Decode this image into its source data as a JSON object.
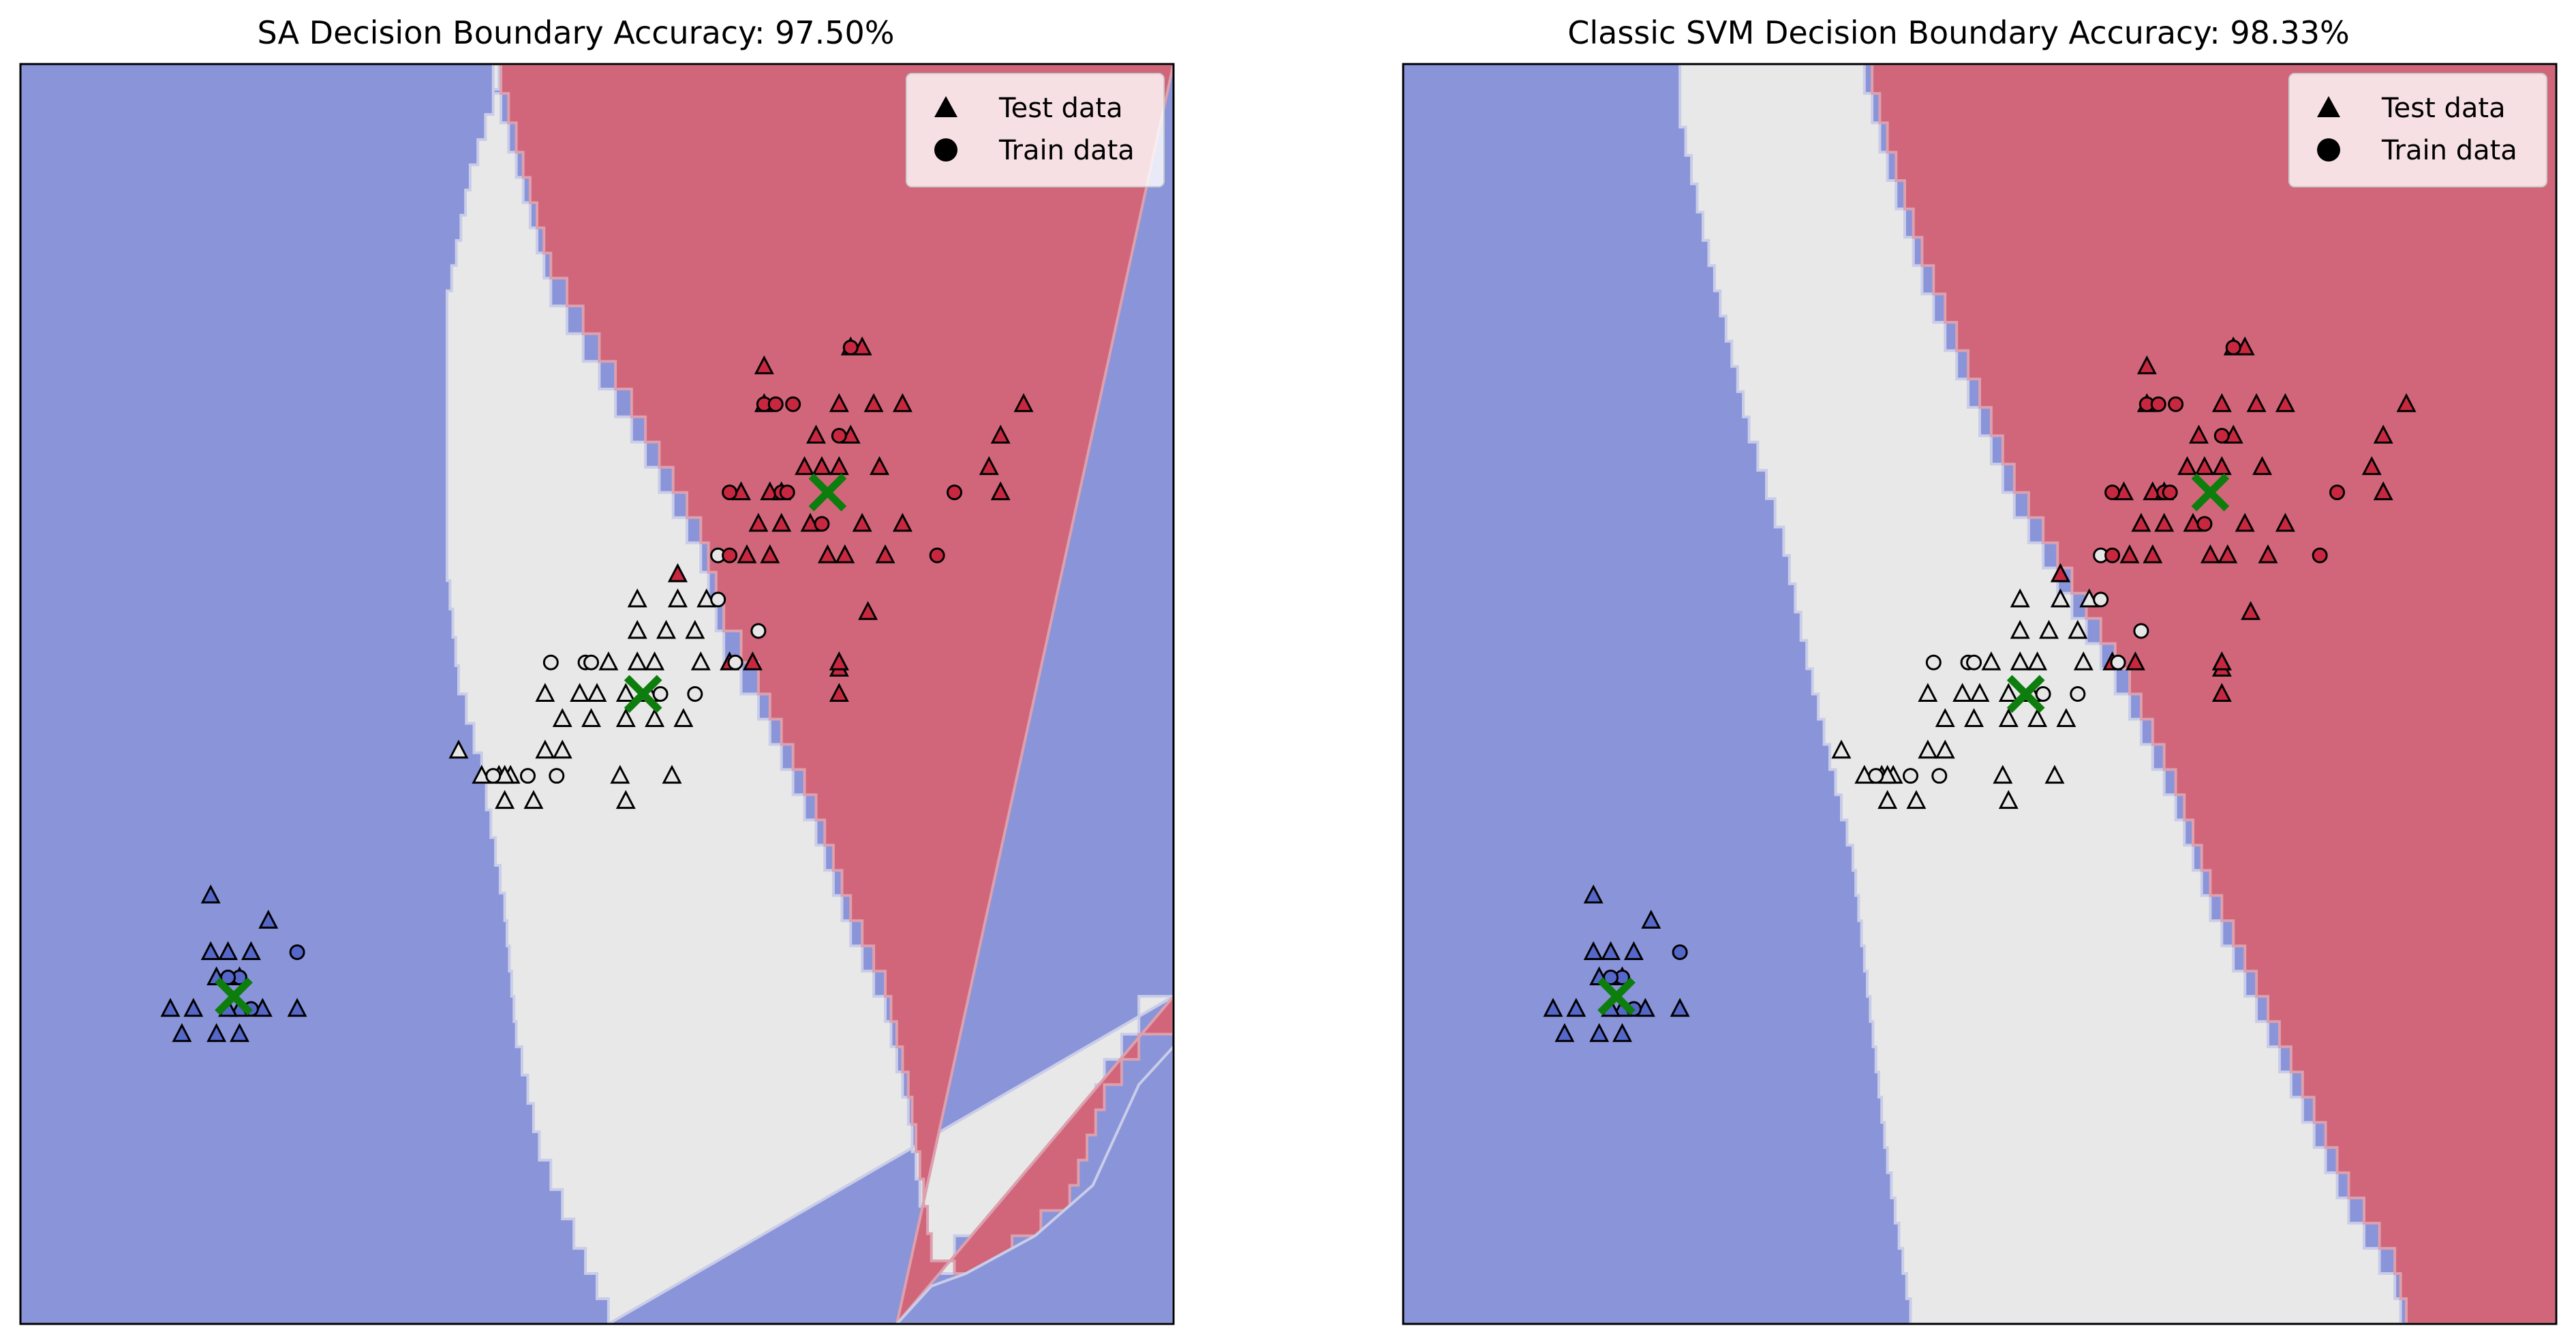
{
  "figure": {
    "colors": {
      "class0": "#8a94d9",
      "class1": "#e8e8e8",
      "class2": "#d1667b",
      "point0": "#5567c9",
      "point1": "#e6e6e6",
      "point2": "#c8283f",
      "centroid": "#0d7d0d"
    }
  },
  "chart_data": [
    {
      "type": "scatter",
      "title": "SA Decision Boundary Accuracy: 97.50%",
      "legend": {
        "position": "top-right",
        "entries": [
          {
            "label": "Test data",
            "marker": "triangle"
          },
          {
            "label": "Train data",
            "marker": "circle"
          }
        ]
      },
      "xlim": [
        0,
        100
      ],
      "ylim": [
        0,
        100
      ],
      "grid": false,
      "regions": {
        "boundary_01": [
          [
            42,
            100
          ],
          [
            41,
            96
          ],
          [
            39,
            90
          ],
          [
            37,
            80
          ],
          [
            37,
            59
          ],
          [
            38,
            50
          ],
          [
            40,
            43
          ],
          [
            42,
            32
          ],
          [
            43,
            22
          ],
          [
            45,
            13
          ],
          [
            48,
            6
          ],
          [
            51,
            0
          ]
        ],
        "boundary_12": [
          [
            41,
            100
          ],
          [
            43,
            93
          ],
          [
            46,
            83
          ],
          [
            53,
            72
          ],
          [
            59,
            62
          ],
          [
            61,
            55
          ],
          [
            64,
            50
          ],
          [
            69,
            40
          ],
          [
            72,
            32
          ],
          [
            75,
            26
          ],
          [
            77,
            18
          ],
          [
            79,
            5
          ],
          [
            81,
            4
          ],
          [
            86,
            7
          ],
          [
            91,
            11
          ],
          [
            94,
            19
          ],
          [
            97,
            23
          ],
          [
            100,
            26
          ]
        ],
        "boundary_20": [
          [
            100,
            22
          ],
          [
            97,
            19
          ],
          [
            93,
            11
          ],
          [
            88,
            7
          ],
          [
            82,
            4
          ],
          [
            79,
            3
          ],
          [
            76,
            0
          ]
        ]
      },
      "points": {
        "test": [
          {
            "x": 16.5,
            "y": 34,
            "c": 0
          },
          {
            "x": 21.5,
            "y": 32,
            "c": 0
          },
          {
            "x": 18,
            "y": 29.5,
            "c": 0
          },
          {
            "x": 20,
            "y": 29.5,
            "c": 0
          },
          {
            "x": 16.5,
            "y": 29.5,
            "c": 0
          },
          {
            "x": 17,
            "y": 27.5,
            "c": 0
          },
          {
            "x": 19,
            "y": 27.5,
            "c": 0
          },
          {
            "x": 15,
            "y": 25,
            "c": 0
          },
          {
            "x": 19,
            "y": 25,
            "c": 0
          },
          {
            "x": 21,
            "y": 25,
            "c": 0
          },
          {
            "x": 18,
            "y": 25,
            "c": 0
          },
          {
            "x": 24,
            "y": 25,
            "c": 0
          },
          {
            "x": 13,
            "y": 25,
            "c": 0
          },
          {
            "x": 17,
            "y": 23,
            "c": 0
          },
          {
            "x": 19,
            "y": 23,
            "c": 0
          },
          {
            "x": 14,
            "y": 23,
            "c": 0
          },
          {
            "x": 57,
            "y": 59.5,
            "c": 1
          },
          {
            "x": 53.5,
            "y": 57.5,
            "c": 1
          },
          {
            "x": 57,
            "y": 57.5,
            "c": 1
          },
          {
            "x": 53.5,
            "y": 55,
            "c": 1
          },
          {
            "x": 56,
            "y": 55,
            "c": 1
          },
          {
            "x": 58.5,
            "y": 55,
            "c": 1
          },
          {
            "x": 51,
            "y": 52.5,
            "c": 1
          },
          {
            "x": 53.5,
            "y": 52.5,
            "c": 1
          },
          {
            "x": 55,
            "y": 52.5,
            "c": 1
          },
          {
            "x": 59,
            "y": 52.5,
            "c": 1
          },
          {
            "x": 45.5,
            "y": 50,
            "c": 1
          },
          {
            "x": 48.5,
            "y": 50,
            "c": 1
          },
          {
            "x": 50,
            "y": 50,
            "c": 1
          },
          {
            "x": 52.5,
            "y": 50,
            "c": 1
          },
          {
            "x": 54.5,
            "y": 50,
            "c": 1
          },
          {
            "x": 47,
            "y": 48,
            "c": 1
          },
          {
            "x": 49.5,
            "y": 48,
            "c": 1
          },
          {
            "x": 52.5,
            "y": 48,
            "c": 1
          },
          {
            "x": 55,
            "y": 48,
            "c": 1
          },
          {
            "x": 57.5,
            "y": 48,
            "c": 1
          },
          {
            "x": 45.5,
            "y": 45.5,
            "c": 1
          },
          {
            "x": 47,
            "y": 45.5,
            "c": 1
          },
          {
            "x": 38,
            "y": 45.5,
            "c": 1
          },
          {
            "x": 42.5,
            "y": 43.5,
            "c": 1
          },
          {
            "x": 41.5,
            "y": 43.5,
            "c": 1
          },
          {
            "x": 42,
            "y": 43.5,
            "c": 1
          },
          {
            "x": 52,
            "y": 43.5,
            "c": 1
          },
          {
            "x": 56.5,
            "y": 43.5,
            "c": 1
          },
          {
            "x": 42,
            "y": 41.5,
            "c": 1
          },
          {
            "x": 44.5,
            "y": 41.5,
            "c": 1
          },
          {
            "x": 59.5,
            "y": 57.5,
            "c": 1
          },
          {
            "x": 40,
            "y": 43.5,
            "c": 1
          },
          {
            "x": 52.5,
            "y": 41.5,
            "c": 1
          },
          {
            "x": 64.5,
            "y": 76,
            "c": 2
          },
          {
            "x": 72,
            "y": 77.5,
            "c": 2
          },
          {
            "x": 73,
            "y": 77.5,
            "c": 2
          },
          {
            "x": 71,
            "y": 73,
            "c": 2
          },
          {
            "x": 74,
            "y": 73,
            "c": 2
          },
          {
            "x": 76.5,
            "y": 73,
            "c": 2
          },
          {
            "x": 87,
            "y": 73,
            "c": 2
          },
          {
            "x": 64.5,
            "y": 73,
            "c": 2
          },
          {
            "x": 69,
            "y": 70.5,
            "c": 2
          },
          {
            "x": 72,
            "y": 70.5,
            "c": 2
          },
          {
            "x": 85,
            "y": 70.5,
            "c": 2
          },
          {
            "x": 68,
            "y": 68,
            "c": 2
          },
          {
            "x": 69.5,
            "y": 68,
            "c": 2
          },
          {
            "x": 71,
            "y": 68,
            "c": 2
          },
          {
            "x": 74.5,
            "y": 68,
            "c": 2
          },
          {
            "x": 84,
            "y": 68,
            "c": 2
          },
          {
            "x": 62.5,
            "y": 66,
            "c": 2
          },
          {
            "x": 65,
            "y": 66,
            "c": 2
          },
          {
            "x": 66,
            "y": 66,
            "c": 2
          },
          {
            "x": 85,
            "y": 66,
            "c": 2
          },
          {
            "x": 64,
            "y": 63.5,
            "c": 2
          },
          {
            "x": 66,
            "y": 63.5,
            "c": 2
          },
          {
            "x": 68.5,
            "y": 63.5,
            "c": 2
          },
          {
            "x": 73,
            "y": 63.5,
            "c": 2
          },
          {
            "x": 76.5,
            "y": 63.5,
            "c": 2
          },
          {
            "x": 63,
            "y": 61,
            "c": 2
          },
          {
            "x": 65,
            "y": 61,
            "c": 2
          },
          {
            "x": 70,
            "y": 61,
            "c": 2
          },
          {
            "x": 71.5,
            "y": 61,
            "c": 2
          },
          {
            "x": 75,
            "y": 61,
            "c": 2
          },
          {
            "x": 57,
            "y": 59.5,
            "c": 2
          },
          {
            "x": 73.5,
            "y": 56.5,
            "c": 2
          },
          {
            "x": 61.5,
            "y": 52.5,
            "c": 2
          },
          {
            "x": 63.5,
            "y": 52.5,
            "c": 2
          },
          {
            "x": 71,
            "y": 52.5,
            "c": 2
          },
          {
            "x": 71,
            "y": 50,
            "c": 2
          },
          {
            "x": 71,
            "y": 52,
            "c": 2
          },
          {
            "x": 71,
            "y": 52.5,
            "c": 2
          }
        ],
        "train": [
          {
            "x": 19,
            "y": 27.5,
            "c": 0
          },
          {
            "x": 24,
            "y": 29.5,
            "c": 0
          },
          {
            "x": 18,
            "y": 27.5,
            "c": 0
          },
          {
            "x": 20,
            "y": 25,
            "c": 0
          },
          {
            "x": 49,
            "y": 52.5,
            "c": 1
          },
          {
            "x": 60.5,
            "y": 57.5,
            "c": 1
          },
          {
            "x": 60.5,
            "y": 61,
            "c": 1
          },
          {
            "x": 64,
            "y": 55,
            "c": 1
          },
          {
            "x": 62,
            "y": 52.5,
            "c": 1
          },
          {
            "x": 58.5,
            "y": 50,
            "c": 1
          },
          {
            "x": 49.5,
            "y": 52.5,
            "c": 1
          },
          {
            "x": 46,
            "y": 52.5,
            "c": 1
          },
          {
            "x": 55.5,
            "y": 50,
            "c": 1
          },
          {
            "x": 41,
            "y": 43.5,
            "c": 1
          },
          {
            "x": 44,
            "y": 43.5,
            "c": 1
          },
          {
            "x": 46.5,
            "y": 43.5,
            "c": 1
          },
          {
            "x": 72,
            "y": 77.5,
            "c": 2
          },
          {
            "x": 64.5,
            "y": 73,
            "c": 2
          },
          {
            "x": 65.5,
            "y": 73,
            "c": 2
          },
          {
            "x": 67,
            "y": 73,
            "c": 2
          },
          {
            "x": 71,
            "y": 70.5,
            "c": 2
          },
          {
            "x": 61.5,
            "y": 66,
            "c": 2
          },
          {
            "x": 66,
            "y": 66,
            "c": 2
          },
          {
            "x": 81,
            "y": 66,
            "c": 2
          },
          {
            "x": 69.5,
            "y": 63.5,
            "c": 2
          },
          {
            "x": 79.5,
            "y": 61,
            "c": 2
          },
          {
            "x": 61.5,
            "y": 61,
            "c": 2
          },
          {
            "x": 66.5,
            "y": 66,
            "c": 2
          }
        ],
        "centroids": [
          {
            "x": 18.5,
            "y": 26,
            "c": 0
          },
          {
            "x": 54,
            "y": 50,
            "c": 1
          },
          {
            "x": 70,
            "y": 66,
            "c": 2
          }
        ]
      }
    },
    {
      "type": "scatter",
      "title": "Classic SVM Decision Boundary Accuracy: 98.33%",
      "legend": {
        "position": "top-right",
        "entries": [
          {
            "label": "Test data",
            "marker": "triangle"
          },
          {
            "label": "Train data",
            "marker": "circle"
          }
        ]
      },
      "xlim": [
        0,
        100
      ],
      "ylim": [
        0,
        100
      ],
      "grid": false,
      "regions": {
        "boundary_01": [
          [
            24,
            100
          ],
          [
            24,
            95
          ],
          [
            26,
            86
          ],
          [
            28,
            78
          ],
          [
            30,
            70
          ],
          [
            33,
            61
          ],
          [
            35,
            52
          ],
          [
            37,
            44
          ],
          [
            39,
            36
          ],
          [
            40,
            28
          ],
          [
            41,
            20
          ],
          [
            42,
            12
          ],
          [
            43,
            6
          ],
          [
            44,
            0
          ]
        ],
        "boundary_12": [
          [
            40,
            100
          ],
          [
            42,
            93
          ],
          [
            45,
            84
          ],
          [
            49,
            75
          ],
          [
            53,
            66
          ],
          [
            58,
            58
          ],
          [
            63,
            50
          ],
          [
            67,
            42
          ],
          [
            70,
            34
          ],
          [
            74,
            26
          ],
          [
            78,
            18
          ],
          [
            82,
            10
          ],
          [
            86,
            4
          ],
          [
            87,
            0
          ]
        ]
      },
      "points_same_as": 0
    }
  ]
}
